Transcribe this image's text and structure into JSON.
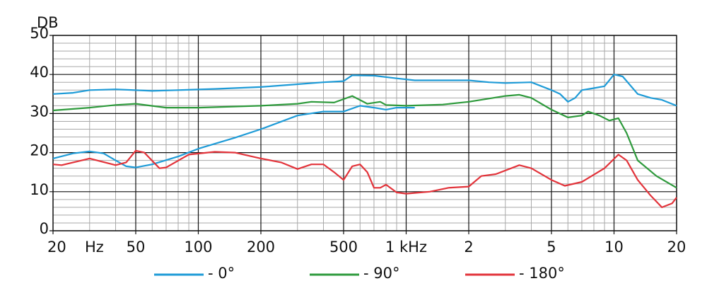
{
  "chart_data": {
    "type": "line",
    "y_label": "DB",
    "x_unit": "Hz",
    "log_x": true,
    "grid": true,
    "xlim": [
      20,
      20000
    ],
    "ylim": [
      0,
      50
    ],
    "xticks": [
      20,
      50,
      100,
      200,
      500,
      {
        "value": 1000,
        "label": "1 kHz"
      },
      {
        "value": 2000,
        "label": "2"
      },
      {
        "value": 5000,
        "label": "5"
      },
      {
        "value": 10000,
        "label": "10"
      },
      {
        "value": 20000,
        "label": "20"
      }
    ],
    "yticks": [
      0,
      10,
      20,
      30,
      40,
      50
    ],
    "minor_xticks": [
      30,
      40,
      60,
      70,
      80,
      90,
      300,
      400,
      600,
      700,
      800,
      900,
      3000,
      4000,
      6000,
      7000,
      8000,
      9000
    ],
    "minor_yticks": [
      2,
      4,
      6,
      8,
      12,
      14,
      16,
      18,
      22,
      24,
      26,
      28,
      32,
      34,
      36,
      38,
      42,
      44,
      46,
      48
    ],
    "series": [
      {
        "name": "- 0°",
        "color": "#1e9bd7",
        "x": [
          20,
          25,
          30,
          40,
          60,
          80,
          120,
          200,
          300,
          400,
          500,
          550,
          700,
          900,
          1100,
          1500,
          2000,
          2500,
          3000,
          4000,
          5000,
          5500,
          6000,
          6500,
          7000,
          8000,
          9000,
          10000,
          11000,
          13000,
          15000,
          17000,
          20000,
          null,
          20,
          25,
          30,
          35,
          40,
          45,
          50,
          60,
          80,
          100,
          150,
          200,
          300,
          400,
          500,
          600,
          700,
          800,
          900,
          1100
        ],
        "values": [
          35,
          35.3,
          36,
          36.2,
          35.8,
          36,
          36.3,
          36.8,
          37.5,
          38,
          38.3,
          39.8,
          39.7,
          39,
          38.5,
          38.5,
          38.5,
          38,
          37.8,
          38,
          36,
          35,
          33,
          34,
          36,
          36.5,
          37,
          40,
          39.5,
          35,
          34,
          33.5,
          32,
          null,
          18.5,
          19.8,
          20.3,
          19.8,
          18,
          16.5,
          16.2,
          17,
          19,
          21,
          23.8,
          26,
          29.5,
          30.5,
          30.5,
          32,
          31.5,
          31,
          31.5,
          31.5
        ]
      },
      {
        "name": "- 90°",
        "color": "#2e9a3c",
        "x": [
          20,
          30,
          40,
          50,
          70,
          100,
          200,
          300,
          350,
          450,
          550,
          650,
          750,
          800,
          1000,
          1500,
          2000,
          3000,
          3500,
          4000,
          5000,
          6000,
          7000,
          7500,
          8500,
          9500,
          10500,
          11500,
          13000,
          16000,
          20000
        ],
        "values": [
          30.8,
          31.5,
          32.2,
          32.5,
          31.5,
          31.5,
          32,
          32.5,
          33,
          32.8,
          34.5,
          32.5,
          33,
          32.2,
          32,
          32.3,
          33,
          34.5,
          34.8,
          34,
          31,
          29,
          29.5,
          30.5,
          29.5,
          28.2,
          28.8,
          25,
          18,
          14,
          11
        ]
      },
      {
        "name": "- 180°",
        "color": "#e2333a",
        "x": [
          20,
          22,
          30,
          40,
          45,
          50,
          55,
          65,
          70,
          90,
          120,
          150,
          200,
          250,
          300,
          350,
          400,
          450,
          500,
          550,
          600,
          650,
          700,
          750,
          800,
          900,
          1000,
          1300,
          1600,
          2000,
          2300,
          2700,
          3500,
          4000,
          5000,
          5800,
          7000,
          9000,
          10500,
          11500,
          13000,
          15000,
          17000,
          19000,
          20000
        ],
        "values": [
          17,
          16.8,
          18.5,
          16.8,
          17.5,
          20.5,
          20,
          16,
          16.2,
          19.5,
          20.2,
          20,
          18.5,
          17.5,
          15.8,
          17,
          17,
          15,
          13,
          16.5,
          17,
          15,
          11,
          11,
          11.8,
          9.8,
          9.5,
          10,
          11,
          11.3,
          14,
          14.5,
          16.8,
          16,
          13,
          11.5,
          12.5,
          16,
          19.5,
          18,
          13,
          9,
          6,
          7,
          8.5
        ]
      }
    ]
  }
}
